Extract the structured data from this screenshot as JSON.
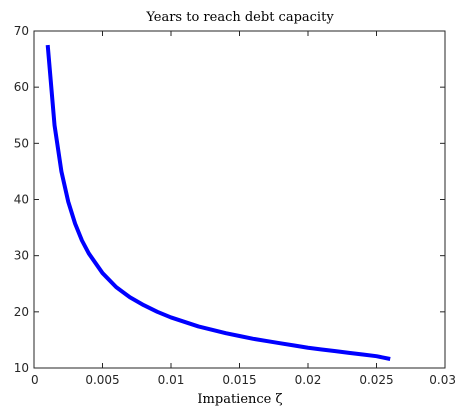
{
  "chart_data": {
    "type": "line",
    "title": "Years to reach debt capacity",
    "xlabel": "Impatience ζ",
    "ylabel": "",
    "xlim": [
      0,
      0.03
    ],
    "ylim": [
      10,
      70
    ],
    "xticks": [
      0,
      0.005,
      0.01,
      0.015,
      0.02,
      0.025,
      0.03
    ],
    "xtick_labels": [
      "0",
      "0.005",
      "0.01",
      "0.015",
      "0.02",
      "0.025",
      "0.03"
    ],
    "yticks": [
      10,
      20,
      30,
      40,
      50,
      60,
      70
    ],
    "ytick_labels": [
      "10",
      "20",
      "30",
      "40",
      "50",
      "60",
      "70"
    ],
    "grid": false,
    "series": [
      {
        "color": "#0000ff",
        "x": [
          0.001,
          0.0015,
          0.002,
          0.0025,
          0.003,
          0.0035,
          0.004,
          0.005,
          0.006,
          0.007,
          0.008,
          0.009,
          0.01,
          0.011,
          0.012,
          0.013,
          0.014,
          0.015,
          0.016,
          0.017,
          0.018,
          0.019,
          0.02,
          0.021,
          0.022,
          0.023,
          0.024,
          0.025,
          0.026
        ],
        "y": [
          67.5,
          53.2,
          45.0,
          39.6,
          35.7,
          32.7,
          30.4,
          26.9,
          24.4,
          22.6,
          21.2,
          20.0,
          19.0,
          18.2,
          17.4,
          16.8,
          16.2,
          15.7,
          15.2,
          14.8,
          14.4,
          14.0,
          13.6,
          13.3,
          13.0,
          12.7,
          12.4,
          12.1,
          11.6
        ]
      }
    ]
  }
}
